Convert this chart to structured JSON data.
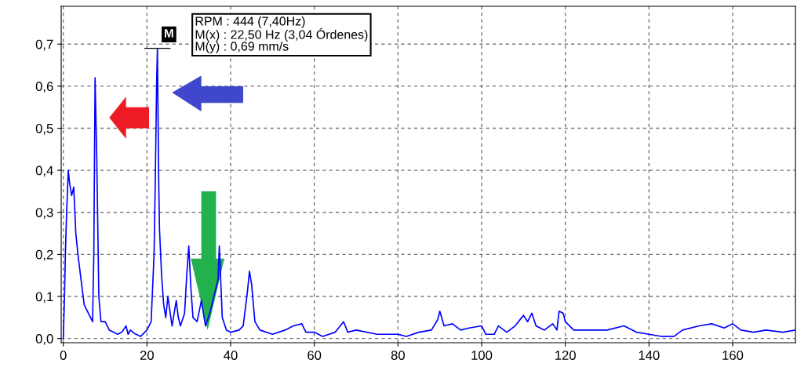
{
  "chart_data": {
    "type": "line",
    "x": [
      0,
      0.3,
      0.5,
      0.8,
      1.2,
      1.5,
      2,
      2.5,
      3,
      3.5,
      4.5,
      5,
      6,
      7,
      7.3,
      7.6,
      8,
      8.5,
      9,
      10,
      11,
      12,
      13,
      14,
      15,
      15.5,
      16,
      17,
      18.5,
      20,
      21,
      21.7,
      22,
      22.3,
      22.5,
      22.8,
      23,
      23.5,
      24,
      24.5,
      25,
      26,
      27,
      27.5,
      28,
      29,
      29.5,
      30,
      30.5,
      31,
      32,
      33,
      34,
      35,
      36,
      37,
      37.3,
      38,
      39,
      40,
      42,
      43,
      44,
      44.5,
      45,
      45.8,
      47,
      50,
      53,
      55,
      57,
      58,
      60,
      62,
      65,
      67,
      68,
      70,
      75,
      80,
      82,
      85,
      88,
      89.5,
      90,
      91,
      93,
      95,
      97,
      100,
      101,
      103,
      104,
      106,
      108,
      110,
      111,
      112,
      113,
      115,
      117,
      118,
      118.5,
      119.5,
      120,
      122,
      125,
      130,
      134,
      137,
      140,
      143,
      146,
      148,
      152,
      155,
      158,
      160,
      162,
      165,
      168,
      172,
      175
    ],
    "series": [
      {
        "color": "#0000ff",
        "values": [
          0,
          0.1,
          0.2,
          0.3,
          0.4,
          0.37,
          0.34,
          0.36,
          0.25,
          0.2,
          0.12,
          0.08,
          0.06,
          0.04,
          0.2,
          0.62,
          0.43,
          0.1,
          0.04,
          0.04,
          0.02,
          0.015,
          0.01,
          0.015,
          0.03,
          0.01,
          0.02,
          0.012,
          0.005,
          0.02,
          0.04,
          0.2,
          0.38,
          0.6,
          0.69,
          0.38,
          0.26,
          0.15,
          0.08,
          0.05,
          0.1,
          0.03,
          0.09,
          0.05,
          0.03,
          0.06,
          0.15,
          0.22,
          0.12,
          0.05,
          0.04,
          0.09,
          0.03,
          0.06,
          0.1,
          0.14,
          0.22,
          0.05,
          0.02,
          0.015,
          0.02,
          0.03,
          0.11,
          0.16,
          0.13,
          0.04,
          0.02,
          0.01,
          0.02,
          0.03,
          0.035,
          0.015,
          0.015,
          0.005,
          0.015,
          0.04,
          0.015,
          0.02,
          0.01,
          0.01,
          0.005,
          0.015,
          0.02,
          0.045,
          0.065,
          0.03,
          0.035,
          0.02,
          0.025,
          0.03,
          0.01,
          0.01,
          0.03,
          0.015,
          0.03,
          0.055,
          0.04,
          0.06,
          0.03,
          0.02,
          0.035,
          0.02,
          0.065,
          0.06,
          0.04,
          0.02,
          0.02,
          0.02,
          0.03,
          0.015,
          0.01,
          0.005,
          0.005,
          0.02,
          0.03,
          0.035,
          0.025,
          0.035,
          0.02,
          0.015,
          0.02,
          0.015,
          0.02
        ]
      }
    ],
    "xlim": [
      -0.5,
      175
    ],
    "ylim": [
      -0.01,
      0.79
    ],
    "xticks": [
      0,
      20,
      40,
      60,
      80,
      100,
      120,
      140,
      160
    ],
    "yticks": [
      {
        "value": 0,
        "label": "0,0"
      },
      {
        "value": 0.1,
        "label": "0,1"
      },
      {
        "value": 0.2,
        "label": "0,2"
      },
      {
        "value": 0.3,
        "label": "0,3"
      },
      {
        "value": 0.4,
        "label": "0,4"
      },
      {
        "value": 0.5,
        "label": "0,5"
      },
      {
        "value": 0.6,
        "label": "0,6"
      },
      {
        "value": 0.7,
        "label": "0,7"
      }
    ],
    "grid": true,
    "annotations": [
      {
        "text": "M",
        "x": 22.5,
        "y": 0.69
      },
      "RPM : 444 (7,40Hz)\nM(x) : 22,50 Hz (3,04 Órdenes)\nM(y) : 0,69 mm/s"
    ]
  }
}
